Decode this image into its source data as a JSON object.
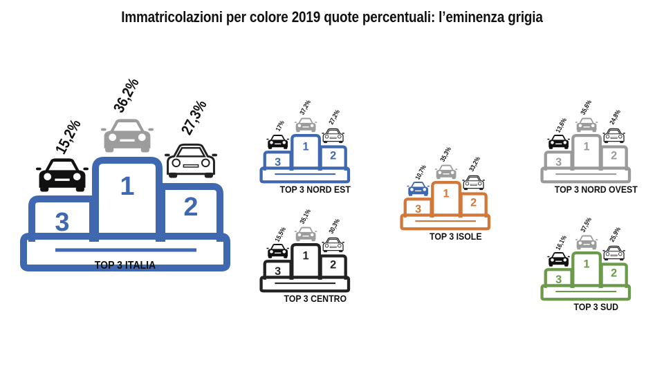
{
  "title": "Immatricolazioni per colore 2019 quote percentuali: l’eminenza grigia",
  "chart_data": [
    {
      "type": "bar",
      "label": "TOP 3 ITALIA",
      "frame_color": "#3f68b0",
      "places": [
        {
          "rank": "1",
          "color": "grey",
          "value": 36.2,
          "text": "36,2%"
        },
        {
          "rank": "2",
          "color": "white",
          "value": 27.3,
          "text": "27,3%"
        },
        {
          "rank": "3",
          "color": "black",
          "value": 15.2,
          "text": "15,2%"
        }
      ]
    },
    {
      "type": "bar",
      "label": "TOP 3 NORD EST",
      "frame_color": "#3f68b0",
      "places": [
        {
          "rank": "1",
          "color": "grey",
          "value": 37.2,
          "text": "37,2%"
        },
        {
          "rank": "2",
          "color": "white",
          "value": 27.2,
          "text": "27,2%"
        },
        {
          "rank": "3",
          "color": "black",
          "value": 17,
          "text": "17%"
        }
      ]
    },
    {
      "type": "bar",
      "label": "TOP 3 CENTRO",
      "frame_color": "#222222",
      "places": [
        {
          "rank": "1",
          "color": "grey",
          "value": 35.1,
          "text": "35,1%"
        },
        {
          "rank": "2",
          "color": "white",
          "value": 30.3,
          "text": "30,3%"
        },
        {
          "rank": "3",
          "color": "black",
          "value": 15.5,
          "text": "15,5%"
        }
      ]
    },
    {
      "type": "bar",
      "label": "TOP 3 ISOLE",
      "frame_color": "#d2773a",
      "places": [
        {
          "rank": "1",
          "color": "grey",
          "value": 35.3,
          "text": "35,3%"
        },
        {
          "rank": "2",
          "color": "white",
          "value": 33.2,
          "text": "33,2%"
        },
        {
          "rank": "3",
          "color": "blue",
          "value": 10.7,
          "text": "10,7%"
        }
      ]
    },
    {
      "type": "bar",
      "label": "TOP 3 NORD OVEST",
      "frame_color": "#9a9a9a",
      "places": [
        {
          "rank": "1",
          "color": "grey",
          "value": 35.6,
          "text": "35,6%"
        },
        {
          "rank": "2",
          "color": "white",
          "value": 24.8,
          "text": "24,8%"
        },
        {
          "rank": "3",
          "color": "black",
          "value": 13.6,
          "text": "13,6%"
        }
      ]
    },
    {
      "type": "bar",
      "label": "TOP 3 SUD",
      "frame_color": "#6a9a4a",
      "places": [
        {
          "rank": "1",
          "color": "grey",
          "value": 37.5,
          "text": "37,5%"
        },
        {
          "rank": "2",
          "color": "white",
          "value": 25.9,
          "text": "25,9%"
        },
        {
          "rank": "3",
          "color": "black",
          "value": 16.1,
          "text": "16,1%"
        }
      ]
    }
  ]
}
